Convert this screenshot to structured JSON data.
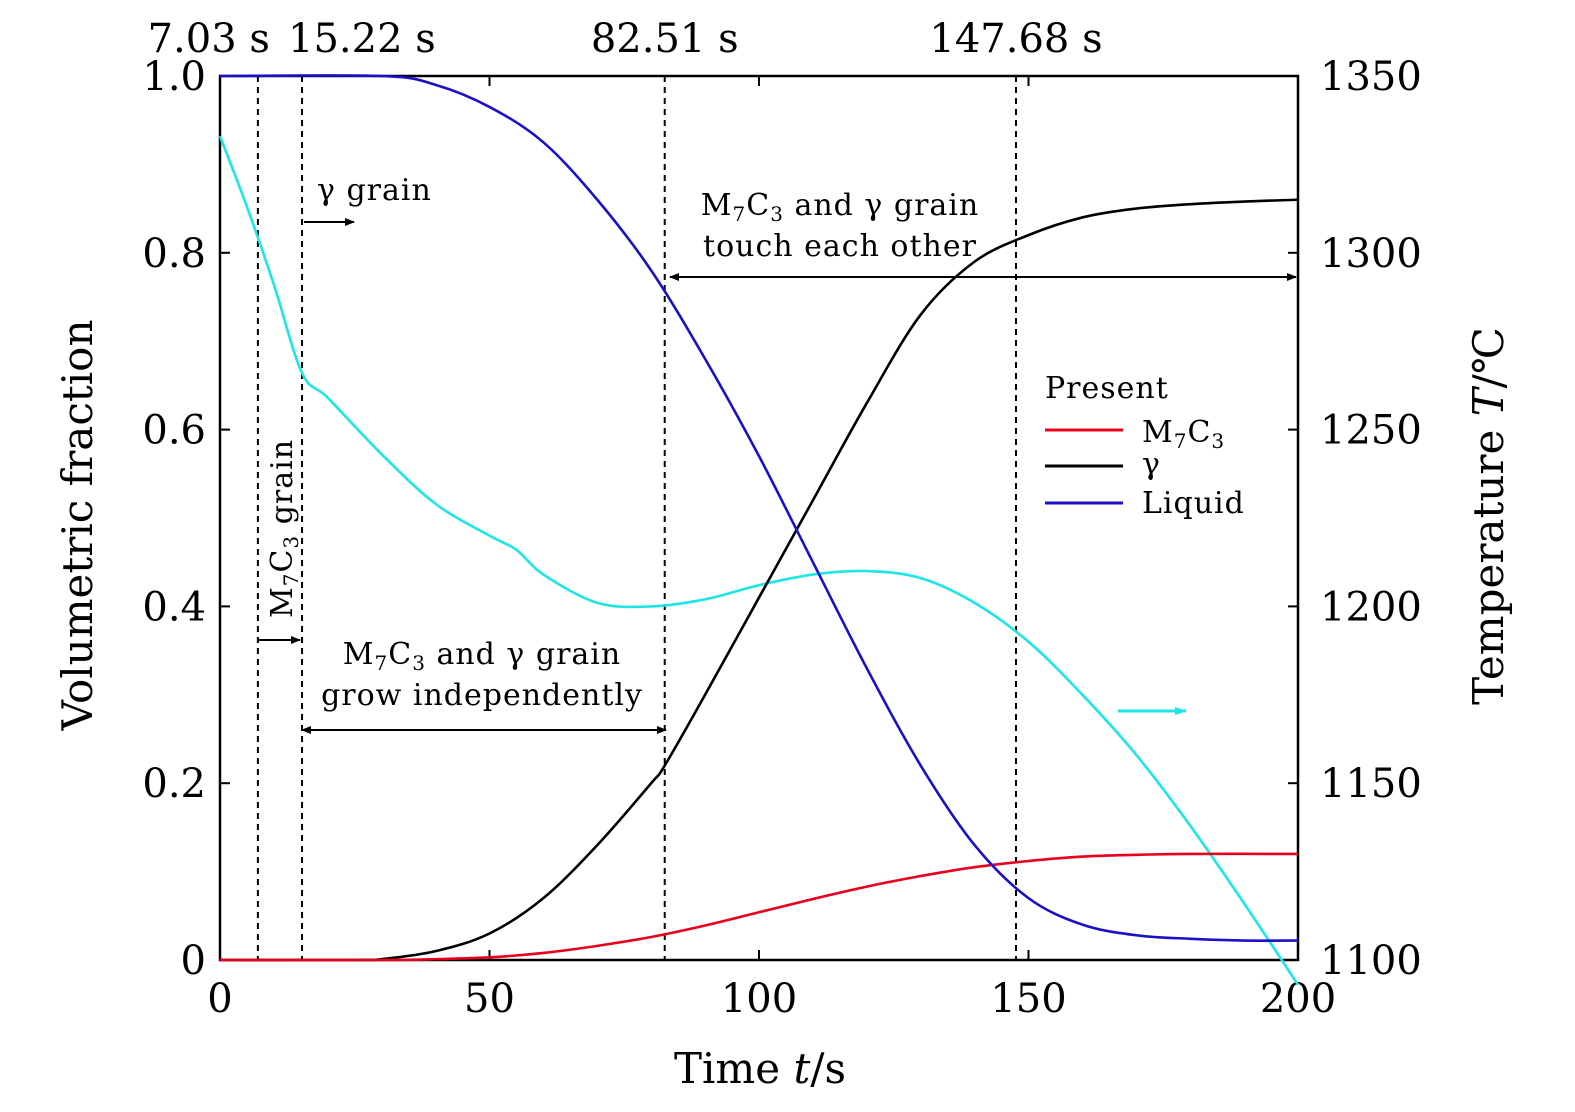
{
  "chart_data": {
    "type": "line",
    "xlabel": {
      "main": "Time ",
      "var": "t",
      "unit": "/s"
    },
    "ylabel": "Volumetric fraction",
    "y2label": {
      "main": "Temperature  ",
      "var": "T",
      "unit": "/℃"
    },
    "xlim": [
      0,
      200
    ],
    "ylim": [
      0,
      1.0
    ],
    "y2lim": [
      1100,
      1350
    ],
    "xticks": [
      "0",
      "50",
      "100",
      "150",
      "200"
    ],
    "yticks": [
      "0",
      "0.2",
      "0.4",
      "0.6",
      "0.8",
      "1.0"
    ],
    "y2ticks": [
      "1100",
      "1150",
      "1200",
      "1250",
      "1300",
      "1350"
    ],
    "event_labels": [
      "7.03 s",
      "15.22 s",
      "82.51 s",
      "147.68 s"
    ],
    "event_times": [
      7.03,
      15.22,
      82.51,
      147.68
    ],
    "legend": {
      "title": "Present",
      "entries": [
        {
          "name": "M7C3",
          "base": "M",
          "sub1": "7",
          "mid": "C",
          "sub2": "3",
          "color": "#e8001c"
        },
        {
          "name": "γ",
          "base": "γ",
          "color": "#000000"
        },
        {
          "name": "Liquid",
          "base": "Liquid",
          "color": "#1a10c8"
        }
      ]
    },
    "annotations": {
      "gamma_grain": "γ grain",
      "m7c3_grain": {
        "base": "M",
        "sub1": "7",
        "mid": "C",
        "sub2": "3",
        "rest": " grain"
      },
      "touch_line1": {
        "base": "M",
        "sub1": "7",
        "mid": "C",
        "sub2": "3",
        "rest": " and γ grain"
      },
      "touch_line2": "touch each other",
      "indep_line1": {
        "base": "M",
        "sub1": "7",
        "mid": "C",
        "sub2": "3",
        "rest": " and γ grain"
      },
      "indep_line2": "grow independently"
    },
    "series": [
      {
        "name": "M7C3",
        "axis": "left",
        "color": "#e8001c",
        "x": [
          0,
          30,
          40,
          50,
          60,
          70,
          80,
          90,
          100,
          110,
          120,
          130,
          140,
          150,
          160,
          170,
          180,
          200
        ],
        "y": [
          0,
          0,
          0.001,
          0.003,
          0.008,
          0.016,
          0.026,
          0.039,
          0.054,
          0.069,
          0.083,
          0.095,
          0.105,
          0.112,
          0.117,
          0.119,
          0.12,
          0.12
        ]
      },
      {
        "name": "γ",
        "axis": "left",
        "color": "#000000",
        "x": [
          0,
          25,
          30,
          40,
          50,
          60,
          70,
          80,
          82.51,
          90,
          100,
          110,
          120,
          130,
          140,
          150,
          160,
          170,
          180,
          190,
          200
        ],
        "y": [
          0,
          0,
          0.001,
          0.01,
          0.03,
          0.07,
          0.13,
          0.2,
          0.22,
          0.3,
          0.41,
          0.52,
          0.63,
          0.73,
          0.79,
          0.82,
          0.84,
          0.85,
          0.855,
          0.858,
          0.86
        ]
      },
      {
        "name": "Liquid",
        "axis": "left",
        "color": "#1a10c8",
        "x": [
          0,
          30,
          40,
          50,
          60,
          70,
          80,
          90,
          100,
          110,
          120,
          130,
          140,
          150,
          160,
          170,
          180,
          190,
          200
        ],
        "y": [
          1.0,
          1.0,
          0.99,
          0.965,
          0.925,
          0.86,
          0.78,
          0.68,
          0.57,
          0.45,
          0.33,
          0.22,
          0.13,
          0.07,
          0.04,
          0.028,
          0.024,
          0.022,
          0.022
        ]
      },
      {
        "name": "Temperature",
        "axis": "right",
        "color": "#1ee6e6",
        "x": [
          0,
          5,
          10,
          15.22,
          20,
          30,
          40,
          50,
          55,
          60,
          70,
          80,
          90,
          100,
          110,
          120,
          130,
          140,
          150,
          160,
          170,
          180,
          190,
          200
        ],
        "y": [
          1333,
          1313,
          1291,
          1266,
          1259,
          1243,
          1229,
          1220,
          1216,
          1209,
          1201,
          1200,
          1202,
          1206,
          1209,
          1210,
          1208,
          1201,
          1190,
          1175,
          1158,
          1138,
          1116,
          1093
        ]
      }
    ]
  }
}
